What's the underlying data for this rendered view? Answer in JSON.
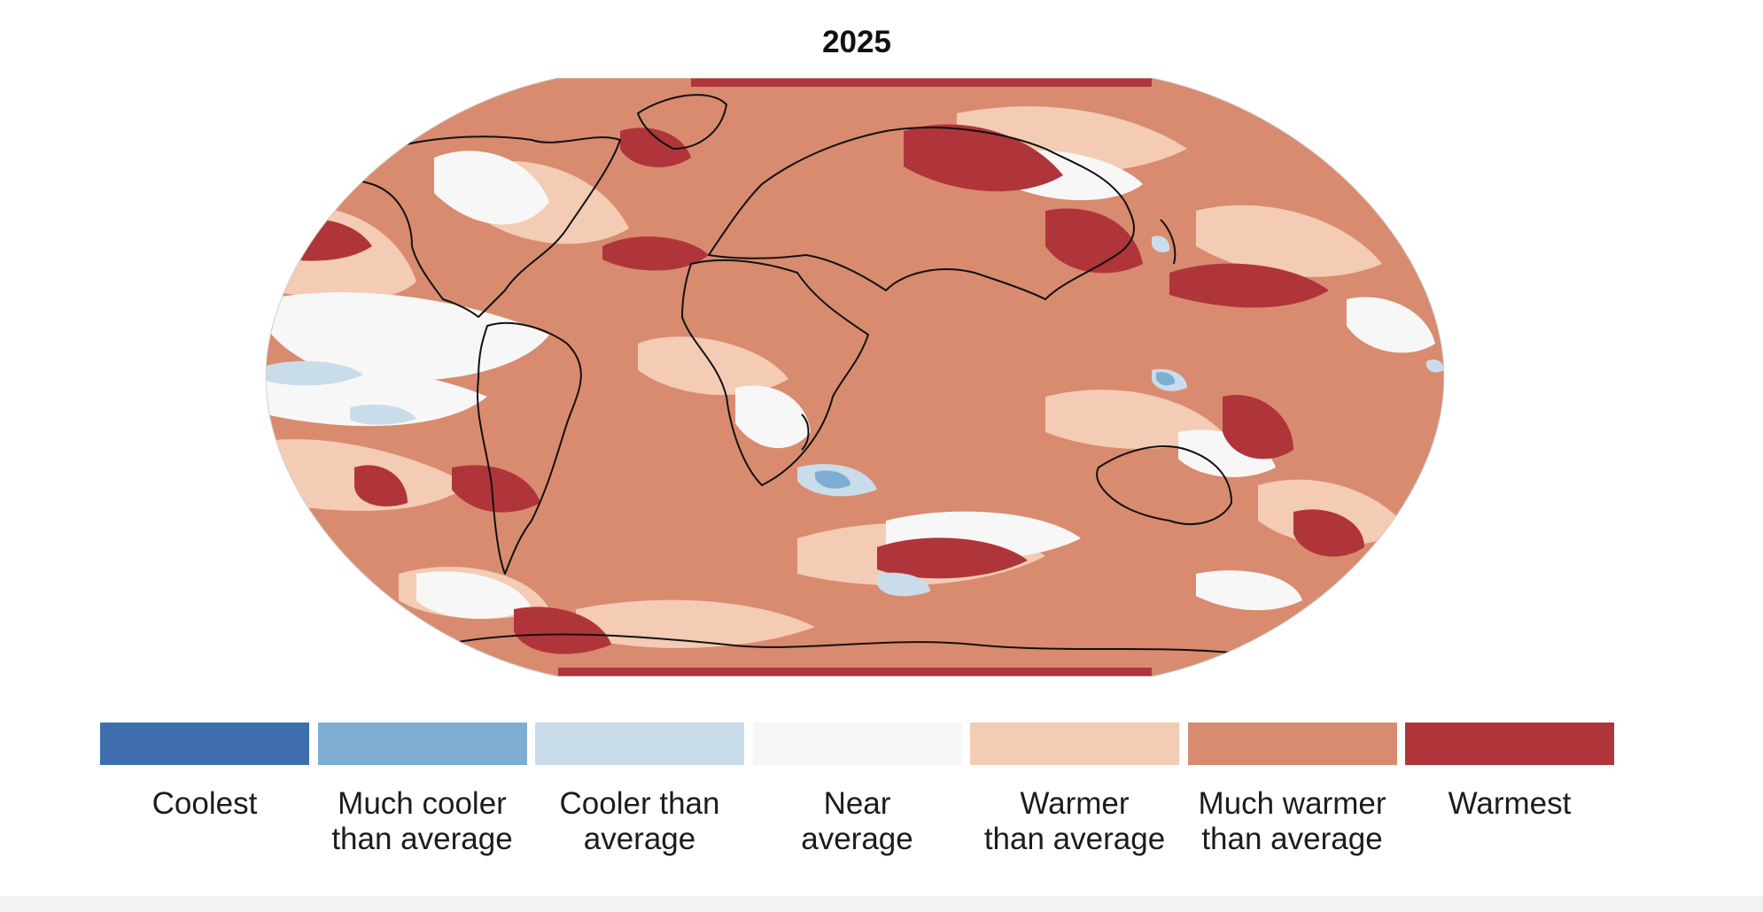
{
  "title": "2025",
  "map": {
    "projection": "robinson",
    "colors": {
      "base": "#d98b6f",
      "near": "#f7f7f7",
      "warmer": "#f4cbb4",
      "much_warmer": "#d98b6f",
      "warmest": "#b0353a",
      "cooler": "#c9dcea",
      "much_cooler": "#7eadd3",
      "coast": "#111111"
    }
  },
  "legend": [
    {
      "label": "Coolest",
      "color": "#3f6eae"
    },
    {
      "label": "Much cooler\nthan average",
      "color": "#7eadd3"
    },
    {
      "label": "Cooler than\naverage",
      "color": "#c9dcea"
    },
    {
      "label": "Near\naverage",
      "color": "#f7f7f7"
    },
    {
      "label": "Warmer\nthan average",
      "color": "#f4cbb4"
    },
    {
      "label": "Much warmer\nthan average",
      "color": "#d98b6f"
    },
    {
      "label": "Warmest",
      "color": "#b0353a"
    }
  ]
}
